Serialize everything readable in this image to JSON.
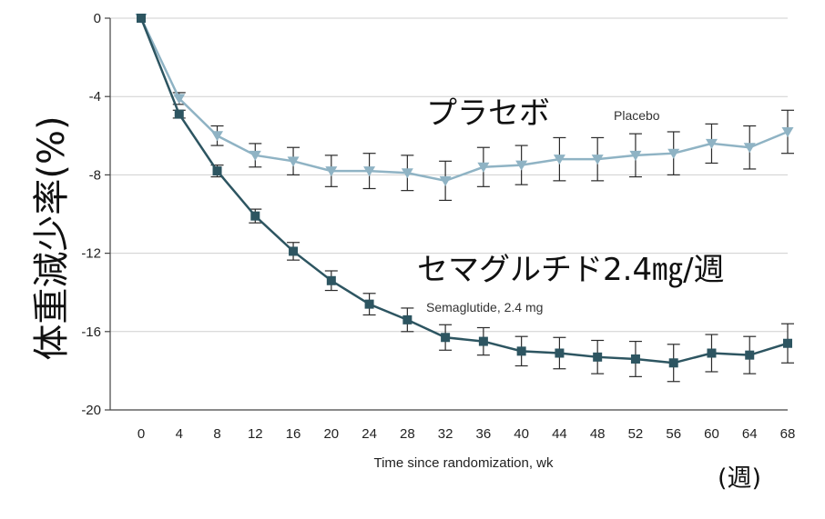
{
  "chart_data": {
    "type": "line",
    "ylabel": "体重減少率(%)",
    "xlabel": "Time since randomization, wk",
    "xunit": "(週)",
    "x": [
      0,
      4,
      8,
      12,
      16,
      20,
      24,
      28,
      32,
      36,
      40,
      44,
      48,
      52,
      56,
      60,
      64,
      68
    ],
    "xlim": [
      0,
      68
    ],
    "ylim": [
      -20,
      0
    ],
    "yticks": [
      0,
      -4,
      -8,
      -12,
      -16,
      -20
    ],
    "grid": true,
    "series": [
      {
        "name": "Placebo",
        "label_jp": "プラセボ",
        "color": "#8fb3c4",
        "marker": "triangle-down",
        "values": [
          0,
          -4.1,
          -6.0,
          -7.0,
          -7.3,
          -7.8,
          -7.8,
          -7.9,
          -8.3,
          -7.6,
          -7.5,
          -7.2,
          -7.2,
          -7.0,
          -6.9,
          -6.4,
          -6.6,
          -5.8
        ],
        "err": [
          0,
          0.3,
          0.5,
          0.6,
          0.7,
          0.8,
          0.9,
          0.9,
          1.0,
          1.0,
          1.0,
          1.1,
          1.1,
          1.1,
          1.1,
          1.0,
          1.1,
          1.1
        ]
      },
      {
        "name": "Semaglutide, 2.4 mg",
        "label_jp": "セマグルチド2.4㎎/週",
        "color": "#2d5561",
        "marker": "square",
        "values": [
          0,
          -4.9,
          -7.8,
          -10.1,
          -11.9,
          -13.4,
          -14.6,
          -15.4,
          -16.3,
          -16.5,
          -17.0,
          -17.1,
          -17.3,
          -17.4,
          -17.6,
          -17.1,
          -17.2,
          -16.6
        ],
        "err": [
          0,
          0.2,
          0.3,
          0.35,
          0.45,
          0.5,
          0.55,
          0.6,
          0.65,
          0.7,
          0.75,
          0.8,
          0.85,
          0.9,
          0.95,
          0.95,
          0.95,
          1.0
        ]
      }
    ]
  }
}
